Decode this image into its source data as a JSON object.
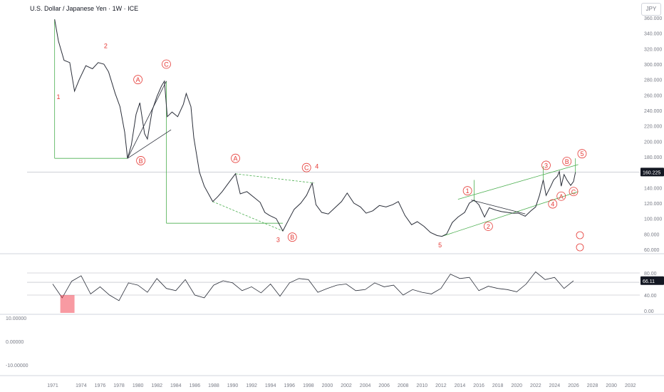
{
  "header": {
    "title": "U.S. Dollar / Japanese Yen · 1W · ICE",
    "unit": "JPY"
  },
  "colors": {
    "price_line": "#2a2e39",
    "up_accent": "#e53935",
    "wave_label": "#e53935",
    "channel": "#4caf50",
    "current_price_badge": "#131722",
    "overbought_fill": "#f23645"
  },
  "chart_data": [
    {
      "type": "line",
      "name": "price",
      "x_axis": {
        "type": "date",
        "ticks": [
          "1971",
          "1974",
          "1976",
          "1978",
          "1980",
          "1982",
          "1984",
          "1986",
          "1988",
          "1990",
          "1992",
          "1994",
          "1996",
          "1998",
          "2000",
          "2002",
          "2004",
          "2006",
          "2008",
          "2010",
          "2012",
          "2014",
          "2016",
          "2018",
          "2020",
          "2022",
          "2024",
          "2026",
          "2028",
          "2030",
          "2032"
        ]
      },
      "y_axis": {
        "ticks": [
          "360.000",
          "340.000",
          "320.000",
          "300.000",
          "280.000",
          "260.000",
          "240.000",
          "220.000",
          "200.000",
          "180.000",
          "160.000",
          "140.000",
          "120.000",
          "100.000",
          "80.000",
          "60.000"
        ],
        "ylim": [
          60,
          360
        ]
      },
      "current_value": "160.225",
      "points": [
        [
          1971.2,
          358
        ],
        [
          1971.6,
          330
        ],
        [
          1972.2,
          305
        ],
        [
          1972.8,
          302
        ],
        [
          1973.3,
          265
        ],
        [
          1973.8,
          280
        ],
        [
          1974.5,
          298
        ],
        [
          1975.2,
          294
        ],
        [
          1975.8,
          302
        ],
        [
          1976.4,
          300
        ],
        [
          1976.9,
          290
        ],
        [
          1977.6,
          262
        ],
        [
          1978.1,
          245
        ],
        [
          1978.6,
          212
        ],
        [
          1978.9,
          178
        ],
        [
          1979.3,
          195
        ],
        [
          1979.8,
          235
        ],
        [
          1980.2,
          250
        ],
        [
          1980.7,
          210
        ],
        [
          1981.0,
          203
        ],
        [
          1981.5,
          240
        ],
        [
          1982.0,
          258
        ],
        [
          1982.5,
          272
        ],
        [
          1982.8,
          278
        ],
        [
          1983.1,
          232
        ],
        [
          1983.6,
          238
        ],
        [
          1984.2,
          232
        ],
        [
          1984.8,
          248
        ],
        [
          1985.1,
          262
        ],
        [
          1985.6,
          245
        ],
        [
          1985.9,
          205
        ],
        [
          1986.5,
          160
        ],
        [
          1987.0,
          142
        ],
        [
          1987.9,
          122
        ],
        [
          1988.4,
          128
        ],
        [
          1988.9,
          135
        ],
        [
          1989.5,
          145
        ],
        [
          1990.3,
          158
        ],
        [
          1990.8,
          132
        ],
        [
          1991.5,
          135
        ],
        [
          1992.3,
          127
        ],
        [
          1992.9,
          121
        ],
        [
          1993.4,
          108
        ],
        [
          1993.9,
          104
        ],
        [
          1994.6,
          100
        ],
        [
          1995.3,
          84
        ],
        [
          1995.9,
          98
        ],
        [
          1996.5,
          112
        ],
        [
          1997.2,
          120
        ],
        [
          1997.8,
          130
        ],
        [
          1998.4,
          146
        ],
        [
          1998.8,
          118
        ],
        [
          1999.4,
          108
        ],
        [
          2000.1,
          106
        ],
        [
          2000.8,
          114
        ],
        [
          2001.5,
          122
        ],
        [
          2002.1,
          133
        ],
        [
          2002.8,
          120
        ],
        [
          2003.5,
          115
        ],
        [
          2004.1,
          107
        ],
        [
          2004.8,
          110
        ],
        [
          2005.5,
          117
        ],
        [
          2006.2,
          115
        ],
        [
          2006.9,
          118
        ],
        [
          2007.5,
          122
        ],
        [
          2008.2,
          104
        ],
        [
          2008.9,
          92
        ],
        [
          2009.5,
          96
        ],
        [
          2010.2,
          90
        ],
        [
          2010.9,
          82
        ],
        [
          2011.6,
          78
        ],
        [
          2012.1,
          77
        ],
        [
          2012.6,
          80
        ],
        [
          2013.2,
          95
        ],
        [
          2013.8,
          102
        ],
        [
          2014.5,
          108
        ],
        [
          2015.0,
          120
        ],
        [
          2015.5,
          124
        ],
        [
          2016.0,
          118
        ],
        [
          2016.6,
          102
        ],
        [
          2017.1,
          114
        ],
        [
          2017.8,
          111
        ],
        [
          2018.4,
          109
        ],
        [
          2019.0,
          108
        ],
        [
          2019.6,
          107
        ],
        [
          2020.2,
          107
        ],
        [
          2020.9,
          103
        ],
        [
          2021.5,
          110
        ],
        [
          2022.0,
          115
        ],
        [
          2022.4,
          130
        ],
        [
          2022.8,
          150
        ],
        [
          2023.1,
          130
        ],
        [
          2023.6,
          142
        ],
        [
          2023.9,
          150
        ],
        [
          2024.3,
          155
        ],
        [
          2024.5,
          161
        ],
        [
          2024.7,
          142
        ],
        [
          2025.0,
          157
        ],
        [
          2025.3,
          150
        ],
        [
          2025.7,
          143
        ],
        [
          2026.0,
          148
        ],
        [
          2026.2,
          160
        ]
      ]
    },
    {
      "type": "line",
      "name": "oscillator",
      "levels": [
        "80.00",
        "63.16",
        "40.00",
        "0.00"
      ],
      "current_value": "66.11",
      "points": [
        [
          1971,
          60
        ],
        [
          1972,
          35
        ],
        [
          1973,
          65
        ],
        [
          1974,
          75
        ],
        [
          1975,
          42
        ],
        [
          1976,
          55
        ],
        [
          1977,
          40
        ],
        [
          1978,
          30
        ],
        [
          1979,
          62
        ],
        [
          1980,
          58
        ],
        [
          1981,
          45
        ],
        [
          1982,
          70
        ],
        [
          1983,
          52
        ],
        [
          1984,
          48
        ],
        [
          1985,
          68
        ],
        [
          1986,
          40
        ],
        [
          1987,
          35
        ],
        [
          1988,
          58
        ],
        [
          1989,
          66
        ],
        [
          1990,
          62
        ],
        [
          1991,
          48
        ],
        [
          1992,
          55
        ],
        [
          1993,
          44
        ],
        [
          1994,
          60
        ],
        [
          1995,
          38
        ],
        [
          1996,
          62
        ],
        [
          1997,
          70
        ],
        [
          1998,
          68
        ],
        [
          1999,
          45
        ],
        [
          2000,
          52
        ],
        [
          2001,
          58
        ],
        [
          2002,
          60
        ],
        [
          2003,
          48
        ],
        [
          2004,
          50
        ],
        [
          2005,
          62
        ],
        [
          2006,
          55
        ],
        [
          2007,
          58
        ],
        [
          2008,
          40
        ],
        [
          2009,
          50
        ],
        [
          2010,
          45
        ],
        [
          2011,
          42
        ],
        [
          2012,
          52
        ],
        [
          2013,
          78
        ],
        [
          2014,
          70
        ],
        [
          2015,
          72
        ],
        [
          2016,
          48
        ],
        [
          2017,
          56
        ],
        [
          2018,
          52
        ],
        [
          2019,
          50
        ],
        [
          2020,
          46
        ],
        [
          2021,
          60
        ],
        [
          2022,
          82
        ],
        [
          2023,
          68
        ],
        [
          2024,
          72
        ],
        [
          2025,
          52
        ],
        [
          2026,
          66
        ]
      ]
    },
    {
      "type": "line",
      "name": "lower-oscillator",
      "y_axis": {
        "ticks": [
          "10.00000",
          "0.00000",
          "-10.00000"
        ]
      }
    }
  ],
  "annotations": {
    "wave_labels": [
      {
        "text": "1",
        "circled": false,
        "x": 1971.6,
        "y": 258
      },
      {
        "text": "2",
        "circled": false,
        "x": 1976.6,
        "y": 324
      },
      {
        "text": "A",
        "circled": true,
        "x": 1980.0,
        "y": 280
      },
      {
        "text": "B",
        "circled": true,
        "x": 1980.3,
        "y": 175
      },
      {
        "text": "C",
        "circled": true,
        "x": 1983.0,
        "y": 300
      },
      {
        "text": "A",
        "circled": true,
        "x": 1990.3,
        "y": 178
      },
      {
        "text": "C",
        "circled": true,
        "x": 1997.8,
        "y": 166
      },
      {
        "text": "4",
        "circled": false,
        "x": 1998.9,
        "y": 168
      },
      {
        "text": "3",
        "circled": false,
        "x": 1994.8,
        "y": 73
      },
      {
        "text": "B",
        "circled": true,
        "x": 1996.3,
        "y": 76
      },
      {
        "text": "5",
        "circled": false,
        "x": 2011.9,
        "y": 66
      },
      {
        "text": "1",
        "circled": true,
        "x": 2014.8,
        "y": 136
      },
      {
        "text": "2",
        "circled": true,
        "x": 2017.0,
        "y": 90
      },
      {
        "text": "3",
        "circled": true,
        "x": 2023.1,
        "y": 169
      },
      {
        "text": "4",
        "circled": true,
        "x": 2023.8,
        "y": 119
      },
      {
        "text": "A",
        "circled": true,
        "x": 2024.7,
        "y": 129
      },
      {
        "text": "B",
        "circled": true,
        "x": 2025.3,
        "y": 174
      },
      {
        "text": "C",
        "circled": true,
        "x": 2026.0,
        "y": 135
      },
      {
        "text": "5",
        "circled": true,
        "x": 2026.9,
        "y": 184
      }
    ]
  }
}
